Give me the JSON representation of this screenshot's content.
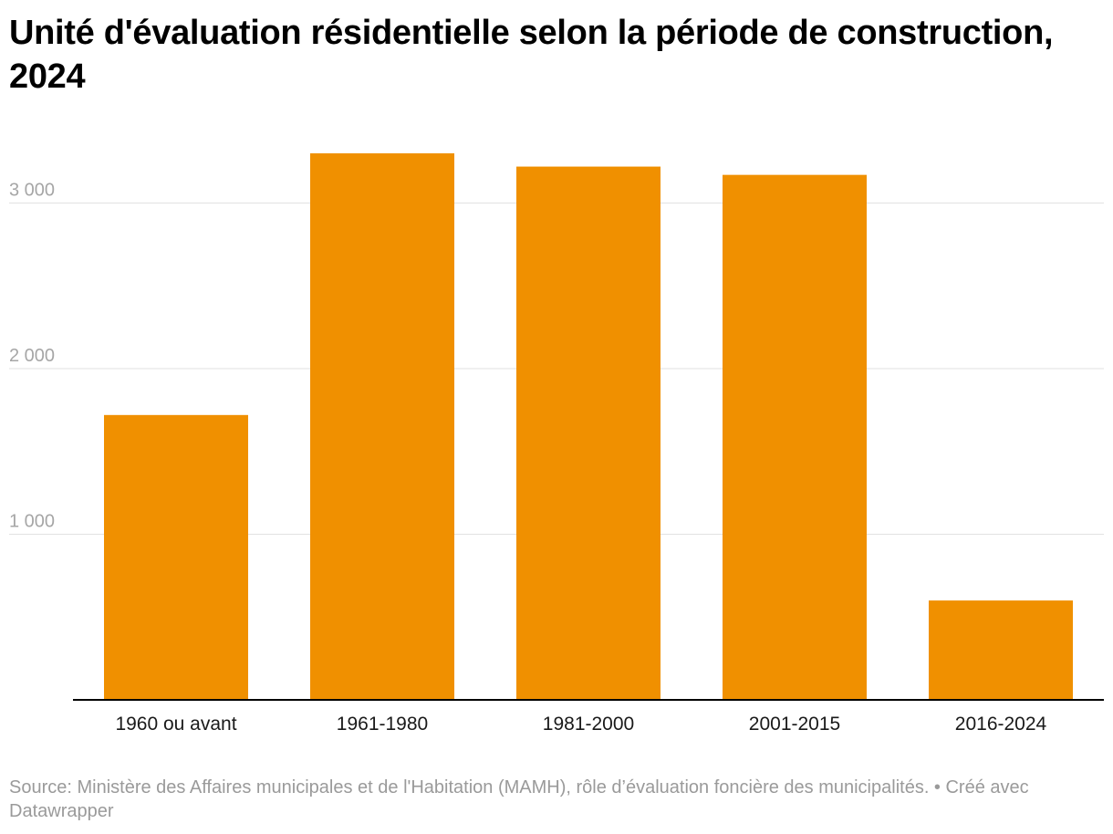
{
  "chart_data": {
    "type": "bar",
    "title": "Unité d'évaluation résidentielle selon la période de construction, 2024",
    "categories": [
      "1960 ou avant",
      "1961-1980",
      "1981-2000",
      "2001-2015",
      "2016-2024"
    ],
    "values": [
      1720,
      3300,
      3220,
      3170,
      600
    ],
    "ylim": [
      0,
      3300
    ],
    "yticks": [
      1000,
      2000,
      3000
    ],
    "ytick_labels": [
      "1 000",
      "2 000",
      "3 000"
    ],
    "grid": true,
    "xlabel": "",
    "ylabel": "",
    "colors": {
      "bar": "#f09000",
      "grid": "#e2e2e2",
      "axis": "#000000",
      "tick_label": "#a6a6a6",
      "category_label": "#1a1a1a"
    }
  },
  "footer": {
    "source": "Source: Ministère des Affaires municipales et de l'Habitation (MAMH), rôle d’évaluation foncière des municipalités. • Créé avec Datawrapper"
  }
}
